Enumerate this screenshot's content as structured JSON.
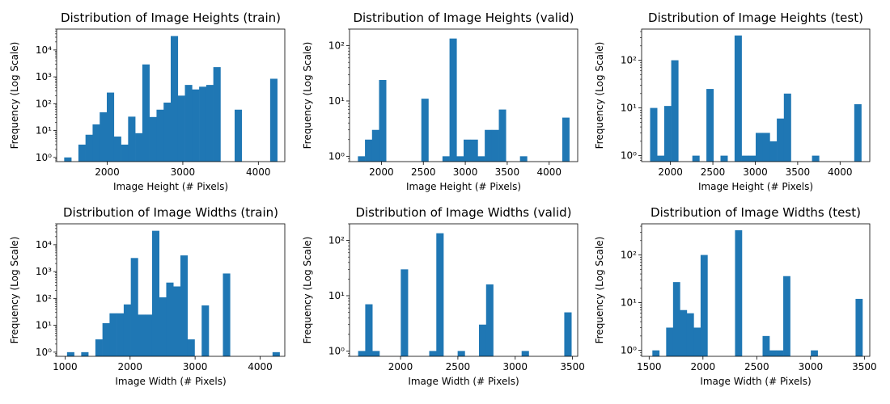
{
  "chart_data": [
    {
      "type": "bar",
      "title": "Distribution of Image Heights (train)",
      "xlabel": "Image Height (# Pixels)",
      "ylabel": "Frequency (Log Scale)",
      "yscale": "log",
      "color": "#1f77b4",
      "xlim": [
        1330,
        4350
      ],
      "ylim": [
        0.7,
        60000
      ],
      "xticks": [
        2000,
        3000,
        4000
      ],
      "yticks": [
        {
          "value": 1,
          "label": "10⁰"
        },
        {
          "value": 10,
          "label": "10¹"
        },
        {
          "value": 100,
          "label": "10²"
        },
        {
          "value": 1000,
          "label": "10³"
        },
        {
          "value": 10000,
          "label": "10⁴"
        }
      ],
      "bin_width": 94,
      "bin_lefts": [
        1430,
        1618,
        1712,
        1806,
        1900,
        1994,
        2088,
        2182,
        2276,
        2370,
        2464,
        2558,
        2652,
        2746,
        2840,
        2934,
        3028,
        3122,
        3216,
        3310,
        3404,
        3686,
        4156
      ],
      "counts": [
        1,
        3,
        7,
        17,
        48,
        260,
        6,
        3,
        33,
        8,
        2900,
        32,
        60,
        110,
        33000,
        200,
        500,
        340,
        430,
        500,
        2300,
        60,
        850
      ]
    },
    {
      "type": "bar",
      "title": "Distribution of Image Heights (valid)",
      "xlabel": "Image Height (# Pixels)",
      "ylabel": "Frequency (Log Scale)",
      "yscale": "log",
      "color": "#1f77b4",
      "xlim": [
        1620,
        4340
      ],
      "ylim": [
        0.8,
        200
      ],
      "xticks": [
        2000,
        2500,
        3000,
        3500,
        4000
      ],
      "yticks": [
        {
          "value": 1,
          "label": "10⁰"
        },
        {
          "value": 10,
          "label": "10¹"
        },
        {
          "value": 100,
          "label": "10²"
        }
      ],
      "bin_width": 84,
      "bin_lefts": [
        1720,
        1804,
        1888,
        1972,
        2476,
        2728,
        2812,
        2896,
        2980,
        3064,
        3148,
        3232,
        3316,
        3400,
        3652,
        4156
      ],
      "counts": [
        1,
        2,
        3,
        24,
        11,
        1,
        135,
        1,
        2,
        2,
        1,
        3,
        3,
        7,
        1,
        5
      ]
    },
    {
      "type": "bar",
      "title": "Distribution of Image Heights (test)",
      "xlabel": "Image Height (# Pixels)",
      "ylabel": "Frequency (Log Scale)",
      "yscale": "log",
      "color": "#1f77b4",
      "xlim": [
        1660,
        4350
      ],
      "ylim": [
        0.75,
        450
      ],
      "xticks": [
        2000,
        2500,
        3000,
        3500,
        4000
      ],
      "yticks": [
        {
          "value": 1,
          "label": "10⁰"
        },
        {
          "value": 10,
          "label": "10¹"
        },
        {
          "value": 100,
          "label": "10²"
        }
      ],
      "bin_width": 83,
      "bin_lefts": [
        1760,
        1843,
        1926,
        2009,
        2258,
        2424,
        2590,
        2756,
        2839,
        2922,
        3005,
        3088,
        3171,
        3254,
        3337,
        3669,
        4167
      ],
      "counts": [
        10,
        1,
        11,
        100,
        1,
        25,
        1,
        330,
        1,
        1,
        3,
        3,
        2,
        6,
        20,
        1,
        12
      ]
    },
    {
      "type": "bar",
      "title": "Distribution of Image Widths (train)",
      "xlabel": "Image Width (# Pixels)",
      "ylabel": "Frequency (Log Scale)",
      "yscale": "log",
      "color": "#1f77b4",
      "xlim": [
        870,
        4380
      ],
      "ylim": [
        0.7,
        60000
      ],
      "xticks": [
        1000,
        2000,
        3000,
        4000
      ],
      "yticks": [
        {
          "value": 1,
          "label": "10⁰"
        },
        {
          "value": 10,
          "label": "10¹"
        },
        {
          "value": 100,
          "label": "10²"
        },
        {
          "value": 1000,
          "label": "10³"
        },
        {
          "value": 10000,
          "label": "10⁴"
        }
      ],
      "bin_width": 109,
      "bin_lefts": [
        1030,
        1248,
        1466,
        1575,
        1684,
        1793,
        1902,
        2011,
        2120,
        2229,
        2338,
        2447,
        2556,
        2665,
        2774,
        2883,
        3101,
        3428,
        4191
      ],
      "counts": [
        1,
        1,
        3,
        12,
        28,
        28,
        60,
        3200,
        25,
        25,
        33000,
        110,
        390,
        280,
        4000,
        3,
        55,
        850,
        1
      ]
    },
    {
      "type": "bar",
      "title": "Distribution of Image Widths (valid)",
      "xlabel": "Image Width (# Pixels)",
      "ylabel": "Frequency (Log Scale)",
      "yscale": "log",
      "color": "#1f77b4",
      "xlim": [
        1555,
        3545
      ],
      "ylim": [
        0.8,
        200
      ],
      "xticks": [
        2000,
        2500,
        3000,
        3500
      ],
      "yticks": [
        {
          "value": 1,
          "label": "10⁰"
        },
        {
          "value": 10,
          "label": "10¹"
        },
        {
          "value": 100,
          "label": "10²"
        }
      ],
      "bin_width": 62,
      "bin_lefts": [
        1630,
        1692,
        1754,
        2002,
        2250,
        2312,
        2498,
        2684,
        2746,
        3056,
        3428
      ],
      "counts": [
        1,
        7,
        1,
        30,
        1,
        135,
        1,
        3,
        16,
        1,
        5
      ]
    },
    {
      "type": "bar",
      "title": "Distribution of Image Widths (test)",
      "xlabel": "Image Width (# Pixels)",
      "ylabel": "Frequency (Log Scale)",
      "yscale": "log",
      "color": "#1f77b4",
      "xlim": [
        1430,
        3550
      ],
      "ylim": [
        0.75,
        450
      ],
      "xticks": [
        1500,
        2000,
        2500,
        3000,
        3500
      ],
      "yticks": [
        {
          "value": 1,
          "label": "10⁰"
        },
        {
          "value": 10,
          "label": "10¹"
        },
        {
          "value": 100,
          "label": "10²"
        }
      ],
      "bin_width": 64,
      "bin_lefts": [
        1530,
        1658,
        1722,
        1786,
        1850,
        1914,
        1978,
        2298,
        2554,
        2618,
        2682,
        2746,
        3002,
        3418
      ],
      "counts": [
        1,
        3,
        27,
        7,
        6,
        3,
        100,
        330,
        2,
        1,
        1,
        36,
        1,
        12
      ]
    }
  ]
}
